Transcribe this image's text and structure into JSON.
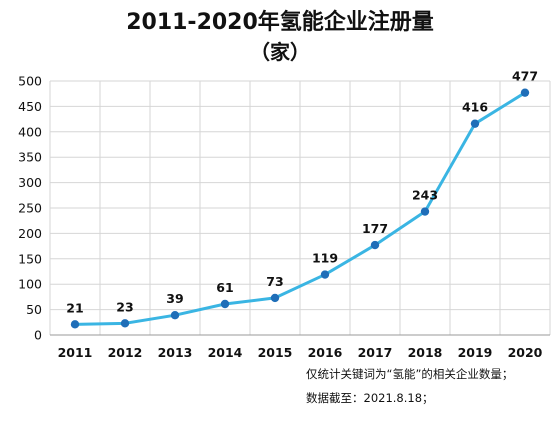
{
  "chart_data": {
    "type": "line",
    "title": "2011-2020年氢能企业注册量",
    "subtitle": "（家）",
    "x": [
      "2011",
      "2012",
      "2013",
      "2014",
      "2015",
      "2016",
      "2017",
      "2018",
      "2019",
      "2020"
    ],
    "series": [
      {
        "values": [
          21,
          23,
          39,
          61,
          73,
          119,
          177,
          243,
          416,
          477
        ],
        "color": "#3ab5e3",
        "marker_color": "#1f6eb8"
      }
    ],
    "ylim": [
      0,
      500
    ],
    "yticks": [
      0,
      50,
      100,
      150,
      200,
      250,
      300,
      350,
      400,
      450,
      500
    ],
    "grid": true,
    "data_labels": true,
    "legend": "none"
  },
  "notes": [
    "仅统计关键词为“氢能”的相关企业数量；",
    "数据截至：2021.8.18；"
  ]
}
